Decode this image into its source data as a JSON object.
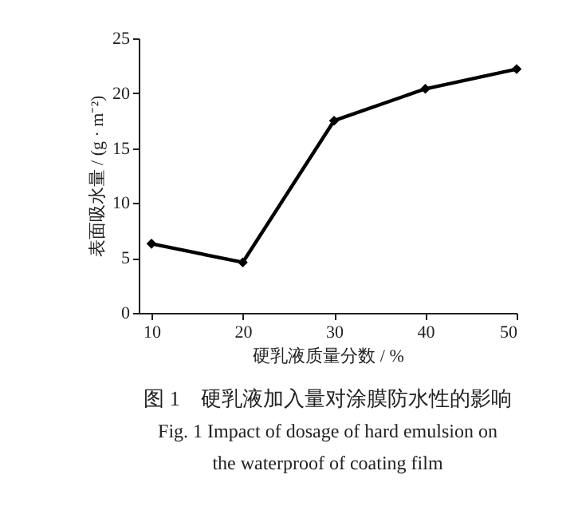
{
  "chart_data": {
    "type": "line",
    "title": "图 1　硬乳液加入量对涂膜防水性的影响",
    "subtitle": "Fig. 1 Impact of dosage of hard emulsion on the waterproof of coating film",
    "xlabel": "硬乳液质量分数 / %",
    "ylabel": "表面吸水量 / (g · m⁻²)",
    "x": [
      10,
      20,
      30,
      40,
      50
    ],
    "series": [
      {
        "color": "#000000",
        "values": [
          6.3,
          4.6,
          17.5,
          20.4,
          22.2
        ]
      }
    ],
    "xlim": [
      8.6,
      50
    ],
    "xticks": [
      10,
      20,
      30,
      40,
      50
    ],
    "ylim": [
      0,
      25
    ],
    "yticks": [
      0,
      5,
      10,
      15,
      20,
      25
    ],
    "grid": false,
    "marker": "diamond",
    "line_style": "solid"
  }
}
